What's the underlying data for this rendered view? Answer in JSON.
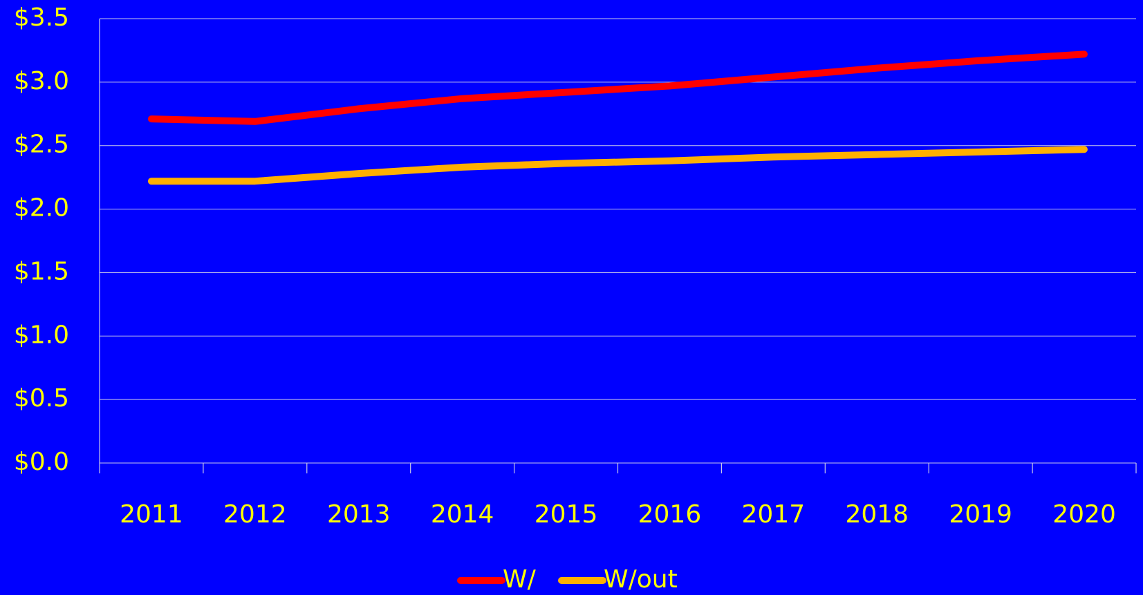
{
  "chart_data": {
    "type": "line",
    "categories": [
      "2011",
      "2012",
      "2013",
      "2014",
      "2015",
      "2016",
      "2017",
      "2018",
      "2019",
      "2020"
    ],
    "series": [
      {
        "name": "W/",
        "color": "#ff0000",
        "values": [
          2.71,
          2.69,
          2.79,
          2.87,
          2.92,
          2.97,
          3.04,
          3.11,
          3.17,
          3.22
        ]
      },
      {
        "name": "W/out",
        "color": "#ffb000",
        "values": [
          2.22,
          2.22,
          2.28,
          2.33,
          2.36,
          2.38,
          2.41,
          2.43,
          2.45,
          2.47
        ]
      }
    ],
    "ylim": [
      0,
      3.5
    ],
    "yticks": [
      {
        "value": 0,
        "label": "$0.0"
      },
      {
        "value": 0.5,
        "label": "$0.5"
      },
      {
        "value": 1,
        "label": "$1.0"
      },
      {
        "value": 1.5,
        "label": "$1.5"
      },
      {
        "value": 2,
        "label": "$2.0"
      },
      {
        "value": 2.5,
        "label": "$2.5"
      },
      {
        "value": 3,
        "label": "$3.0"
      },
      {
        "value": 3.5,
        "label": "$3.5"
      }
    ],
    "grid": true,
    "legend": "bottom"
  }
}
